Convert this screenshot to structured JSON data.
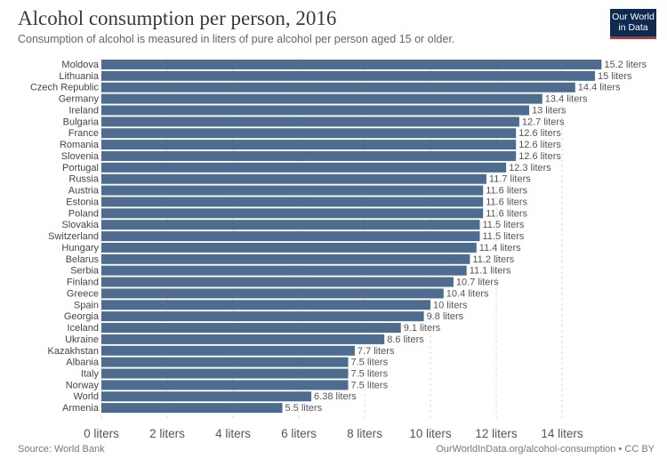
{
  "header": {
    "title": "Alcohol consumption per person, 2016",
    "subtitle": "Consumption of alcohol is measured in liters of pure alcohol per person aged 15 or older."
  },
  "logo": {
    "line1": "Our World",
    "line2": "in Data"
  },
  "footer": {
    "source": "Source: World Bank",
    "license": "OurWorldInData.org/alcohol-consumption • CC BY"
  },
  "colors": {
    "bar": "#4d6c8f",
    "logo_bg": "#0e2a4f",
    "logo_accent": "#d42b20"
  },
  "chart_data": {
    "type": "bar",
    "orientation": "horizontal",
    "title": "Alcohol consumption per person, 2016",
    "unit": "liters",
    "xlim": [
      0,
      15.2
    ],
    "grid": true,
    "categories": [
      "Moldova",
      "Lithuania",
      "Czech Republic",
      "Germany",
      "Ireland",
      "Bulgaria",
      "France",
      "Romania",
      "Slovenia",
      "Portugal",
      "Russia",
      "Austria",
      "Estonia",
      "Poland",
      "Slovakia",
      "Switzerland",
      "Hungary",
      "Belarus",
      "Serbia",
      "Finland",
      "Greece",
      "Spain",
      "Georgia",
      "Iceland",
      "Ukraine",
      "Kazakhstan",
      "Albania",
      "Italy",
      "Norway",
      "World",
      "Armenia"
    ],
    "values": [
      15.2,
      15,
      14.4,
      13.4,
      13,
      12.7,
      12.6,
      12.6,
      12.6,
      12.3,
      11.7,
      11.6,
      11.6,
      11.6,
      11.5,
      11.5,
      11.4,
      11.2,
      11.1,
      10.7,
      10.4,
      10,
      9.8,
      9.1,
      8.6,
      7.7,
      7.5,
      7.5,
      7.5,
      6.38,
      5.5
    ],
    "value_labels": [
      "15.2 liters",
      "15 liters",
      "14.4 liters",
      "13.4 liters",
      "13 liters",
      "12.7 liters",
      "12.6 liters",
      "12.6 liters",
      "12.6 liters",
      "12.3 liters",
      "11.7 liters",
      "11.6 liters",
      "11.6 liters",
      "11.6 liters",
      "11.5 liters",
      "11.5 liters",
      "11.4 liters",
      "11.2 liters",
      "11.1 liters",
      "10.7 liters",
      "10.4 liters",
      "10 liters",
      "9.8 liters",
      "9.1 liters",
      "8.6 liters",
      "7.7 liters",
      "7.5 liters",
      "7.5 liters",
      "7.5 liters",
      "6.38 liters",
      "5.5 liters"
    ],
    "x_ticks": [
      0,
      2,
      4,
      6,
      8,
      10,
      12,
      14
    ],
    "x_tick_labels": [
      "0 liters",
      "2 liters",
      "4 liters",
      "6 liters",
      "8 liters",
      "10 liters",
      "12 liters",
      "14 liters"
    ]
  }
}
